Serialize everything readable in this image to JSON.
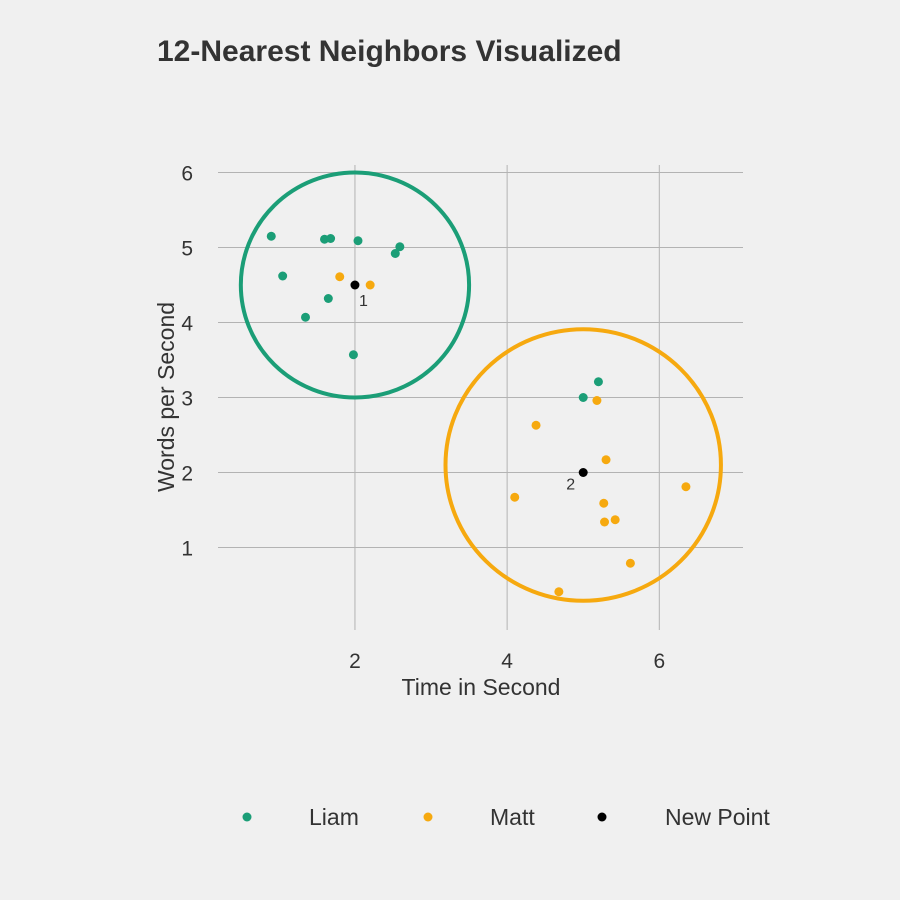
{
  "chart_data": {
    "type": "scatter",
    "title": "12-Nearest Neighbors Visualized",
    "xlabel": "Time in Second",
    "ylabel": "Words per Second",
    "xlim": [
      0.2,
      7.1
    ],
    "ylim": [
      -0.1,
      6.1
    ],
    "xticks": [
      2,
      4,
      6
    ],
    "yticks": [
      1,
      2,
      3,
      4,
      5,
      6
    ],
    "grid": true,
    "legend_position": "bottom",
    "colors": {
      "Liam": "#1b9e77",
      "Matt": "#f6a90f",
      "New Point": "#000000"
    },
    "series": [
      {
        "name": "Liam",
        "color": "#1b9e77",
        "points": [
          [
            0.9,
            5.15
          ],
          [
            1.05,
            4.62
          ],
          [
            1.6,
            5.11
          ],
          [
            1.68,
            5.12
          ],
          [
            2.04,
            5.09
          ],
          [
            2.59,
            5.01
          ],
          [
            2.53,
            4.92
          ],
          [
            1.65,
            4.32
          ],
          [
            1.35,
            4.07
          ],
          [
            1.98,
            3.57
          ],
          [
            5.0,
            3.0
          ],
          [
            5.2,
            3.21
          ]
        ]
      },
      {
        "name": "Matt",
        "color": "#f6a90f",
        "points": [
          [
            1.8,
            4.61
          ],
          [
            2.2,
            4.5
          ],
          [
            5.18,
            2.96
          ],
          [
            4.38,
            2.63
          ],
          [
            5.3,
            2.17
          ],
          [
            4.1,
            1.67
          ],
          [
            5.27,
            1.59
          ],
          [
            5.42,
            1.37
          ],
          [
            5.28,
            1.34
          ],
          [
            6.35,
            1.81
          ],
          [
            5.62,
            0.79
          ],
          [
            4.68,
            0.41
          ]
        ]
      },
      {
        "name": "New Point",
        "color": "#000000",
        "points": [
          {
            "x": 2.0,
            "y": 4.5,
            "label": "1"
          },
          {
            "x": 5.0,
            "y": 2.0,
            "label": "2"
          }
        ]
      }
    ],
    "circles": [
      {
        "cx": 2.0,
        "cy": 4.5,
        "rx": 1.5,
        "ry": 1.5,
        "color": "#1b9e77"
      },
      {
        "cx": 5.0,
        "cy": 2.1,
        "rx": 1.81,
        "ry": 1.81,
        "color": "#f6a90f"
      }
    ],
    "legend": [
      {
        "name": "Liam",
        "color": "#1b9e77"
      },
      {
        "name": "Matt",
        "color": "#f6a90f"
      },
      {
        "name": "New Point",
        "color": "#000000"
      }
    ]
  }
}
